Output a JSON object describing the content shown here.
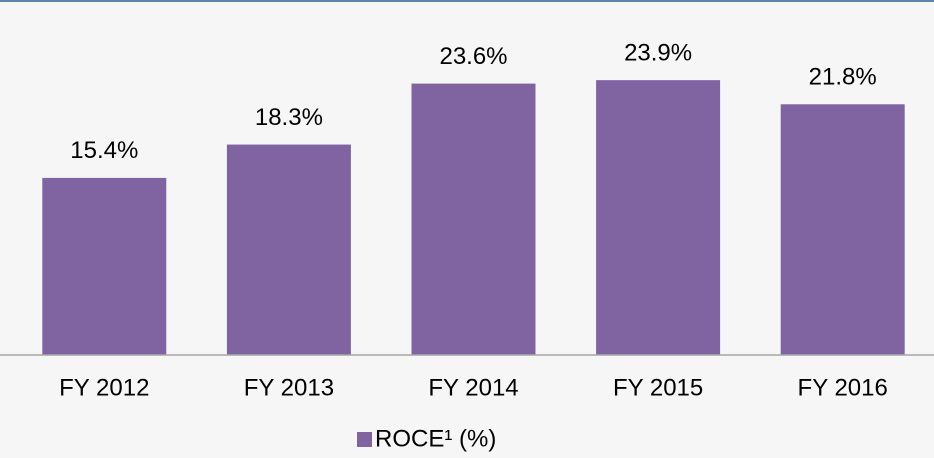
{
  "chart_data": {
    "type": "bar",
    "categories": [
      "FY 2012",
      "FY 2013",
      "FY 2014",
      "FY 2015",
      "FY 2016"
    ],
    "series": [
      {
        "name": "ROCE¹ (%)",
        "color": "#8064a2",
        "values": [
          15.4,
          18.3,
          23.6,
          23.9,
          21.8
        ],
        "value_labels": [
          "15.4%",
          "18.3%",
          "23.6%",
          "23.9%",
          "21.8%"
        ]
      }
    ],
    "ylim": [
      0,
      30
    ]
  }
}
